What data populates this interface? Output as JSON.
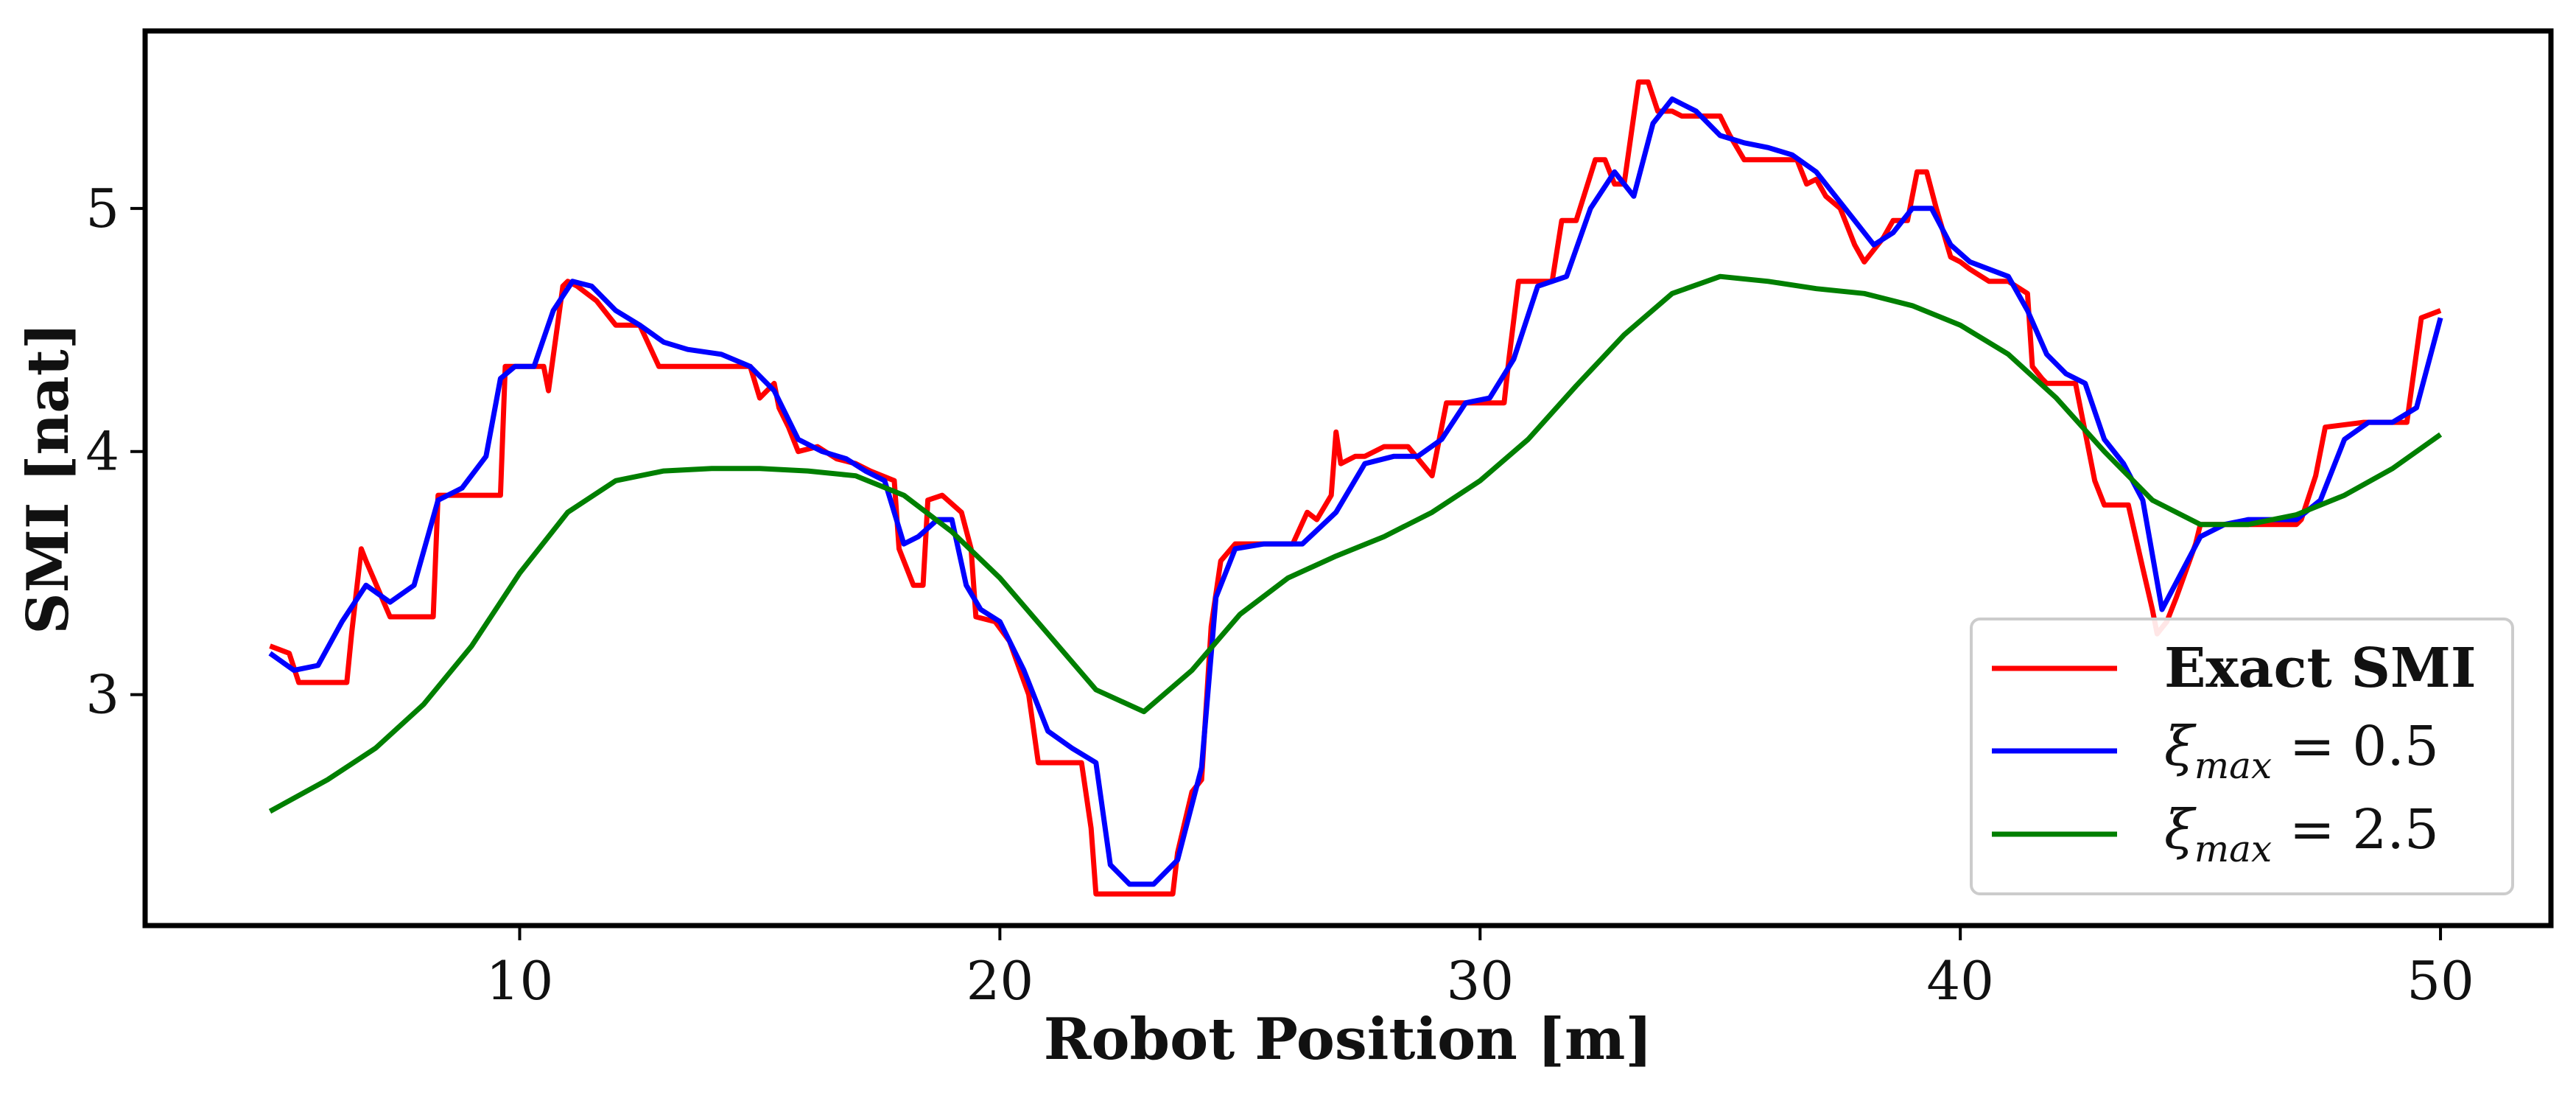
{
  "chart_data": {
    "type": "line",
    "xlabel": "Robot Position [m]",
    "ylabel": "SMI [nat]",
    "xlim": [
      2.2,
      52.3
    ],
    "ylim": [
      2.05,
      5.73
    ],
    "xticks": [
      10,
      20,
      30,
      40,
      50
    ],
    "yticks": [
      3,
      4,
      5
    ],
    "grid": false,
    "legend_position": "bottom-right",
    "series": [
      {
        "name": "Exact SMI",
        "legend_main": "Exact SMI",
        "legend_sub": "",
        "legend_rest": "",
        "color": "#ff0000",
        "x": [
          4.8,
          5.2,
          5.4,
          6.4,
          6.5,
          6.7,
          6.8,
          7.3,
          8.2,
          8.3,
          9.6,
          9.7,
          10.5,
          10.6,
          10.9,
          11.0,
          11.2,
          11.6,
          12.0,
          12.5,
          12.9,
          13.0,
          14.8,
          15.0,
          15.3,
          15.4,
          15.6,
          15.8,
          16.2,
          16.6,
          17.0,
          17.3,
          17.8,
          17.9,
          18.2,
          18.4,
          18.5,
          18.8,
          19.2,
          19.4,
          19.5,
          19.9,
          20.2,
          20.6,
          20.8,
          21.3,
          21.7,
          21.9,
          22.0,
          22.3,
          22.6,
          23.6,
          23.7,
          24.0,
          24.2,
          24.4,
          24.6,
          24.9,
          26.1,
          26.4,
          26.6,
          26.9,
          27.0,
          27.1,
          27.4,
          27.6,
          28.0,
          28.5,
          29.0,
          29.1,
          29.3,
          29.5,
          30.5,
          30.6,
          30.8,
          31.5,
          31.7,
          31.9,
          32.0,
          32.4,
          32.6,
          32.8,
          33.0,
          33.3,
          33.5,
          33.7,
          34.0,
          34.2,
          35.0,
          35.2,
          35.5,
          36.1,
          36.3,
          36.6,
          36.8,
          37.0,
          37.2,
          37.5,
          37.8,
          38.0,
          38.4,
          38.6,
          38.9,
          39.1,
          39.3,
          39.5,
          39.8,
          40.0,
          40.2,
          40.6,
          41.0,
          41.4,
          41.5,
          41.7,
          41.8,
          42.4,
          42.6,
          42.8,
          43.0,
          43.5,
          43.8,
          44.0,
          44.1,
          44.3,
          44.5,
          44.9,
          45.0,
          45.4,
          47.0,
          47.1,
          47.4,
          47.6,
          48.4,
          48.6,
          49.3,
          49.6,
          50.0
        ],
        "y": [
          3.2,
          3.17,
          3.05,
          3.05,
          3.25,
          3.6,
          3.55,
          3.32,
          3.32,
          3.82,
          3.82,
          4.35,
          4.35,
          4.25,
          4.68,
          4.7,
          4.68,
          4.62,
          4.52,
          4.52,
          4.35,
          4.35,
          4.35,
          4.22,
          4.28,
          4.18,
          4.1,
          4.0,
          4.02,
          3.97,
          3.95,
          3.92,
          3.88,
          3.6,
          3.45,
          3.45,
          3.8,
          3.82,
          3.75,
          3.6,
          3.32,
          3.3,
          3.22,
          3.0,
          2.72,
          2.72,
          2.72,
          2.45,
          2.18,
          2.18,
          2.18,
          2.18,
          2.35,
          2.6,
          2.65,
          3.28,
          3.55,
          3.62,
          3.62,
          3.75,
          3.72,
          3.82,
          4.08,
          3.95,
          3.98,
          3.98,
          4.02,
          4.02,
          3.9,
          4.0,
          4.2,
          4.2,
          4.2,
          4.38,
          4.7,
          4.7,
          4.95,
          4.95,
          4.95,
          5.2,
          5.2,
          5.1,
          5.1,
          5.52,
          5.52,
          5.4,
          5.4,
          5.38,
          5.38,
          5.3,
          5.2,
          5.2,
          5.2,
          5.2,
          5.1,
          5.12,
          5.05,
          5.0,
          4.85,
          4.78,
          4.88,
          4.95,
          4.95,
          5.15,
          5.15,
          5.0,
          4.8,
          4.78,
          4.75,
          4.7,
          4.7,
          4.65,
          4.35,
          4.3,
          4.28,
          4.28,
          4.08,
          3.88,
          3.78,
          3.78,
          3.52,
          3.35,
          3.25,
          3.3,
          3.4,
          3.62,
          3.7,
          3.7,
          3.7,
          3.72,
          3.9,
          4.1,
          4.12,
          4.12,
          4.12,
          4.55,
          4.58
        ]
      },
      {
        "name": "ξmax = 0.5",
        "legend_main": "ξ",
        "legend_sub": "max",
        "legend_rest": " = 0.5",
        "color": "#0000ff",
        "x": [
          4.8,
          5.3,
          5.8,
          6.3,
          6.8,
          7.3,
          7.8,
          8.3,
          8.8,
          9.3,
          9.6,
          9.9,
          10.3,
          10.7,
          11.1,
          11.5,
          12.0,
          12.5,
          13.0,
          13.5,
          14.2,
          14.8,
          15.3,
          15.8,
          16.3,
          16.8,
          17.2,
          17.6,
          18.0,
          18.3,
          18.7,
          19.0,
          19.3,
          19.6,
          20.0,
          20.5,
          21.0,
          21.5,
          22.0,
          22.3,
          22.7,
          23.2,
          23.7,
          24.2,
          24.5,
          24.9,
          25.5,
          26.3,
          27.0,
          27.6,
          28.2,
          28.7,
          29.2,
          29.7,
          30.2,
          30.7,
          31.2,
          31.8,
          32.3,
          32.8,
          33.2,
          33.6,
          34.0,
          34.5,
          35.0,
          35.5,
          36.0,
          36.5,
          37.0,
          37.4,
          37.8,
          38.2,
          38.6,
          39.0,
          39.4,
          39.8,
          40.2,
          40.6,
          41.0,
          41.4,
          41.8,
          42.2,
          42.6,
          43.0,
          43.4,
          43.8,
          44.2,
          44.6,
          45.0,
          45.5,
          46.0,
          46.5,
          47.0,
          47.5,
          48.0,
          48.5,
          49.0,
          49.5,
          50.0
        ],
        "y": [
          3.17,
          3.1,
          3.12,
          3.3,
          3.45,
          3.38,
          3.45,
          3.8,
          3.85,
          3.98,
          4.3,
          4.35,
          4.35,
          4.58,
          4.7,
          4.68,
          4.58,
          4.52,
          4.45,
          4.42,
          4.4,
          4.35,
          4.25,
          4.05,
          4.0,
          3.97,
          3.92,
          3.88,
          3.62,
          3.65,
          3.72,
          3.72,
          3.45,
          3.35,
          3.3,
          3.1,
          2.85,
          2.78,
          2.72,
          2.3,
          2.22,
          2.22,
          2.32,
          2.7,
          3.4,
          3.6,
          3.62,
          3.62,
          3.75,
          3.95,
          3.98,
          3.98,
          4.05,
          4.2,
          4.22,
          4.38,
          4.68,
          4.72,
          5.0,
          5.15,
          5.05,
          5.35,
          5.45,
          5.4,
          5.3,
          5.27,
          5.25,
          5.22,
          5.15,
          5.05,
          4.95,
          4.85,
          4.9,
          5.0,
          5.0,
          4.85,
          4.78,
          4.75,
          4.72,
          4.58,
          4.4,
          4.32,
          4.28,
          4.05,
          3.95,
          3.8,
          3.35,
          3.5,
          3.65,
          3.7,
          3.72,
          3.72,
          3.72,
          3.8,
          4.05,
          4.12,
          4.12,
          4.18,
          4.55
        ]
      },
      {
        "name": "ξmax = 2.5",
        "legend_main": "ξ",
        "legend_sub": "max",
        "legend_rest": " = 2.5",
        "color": "#007f00",
        "x": [
          4.8,
          6.0,
          7.0,
          8.0,
          9.0,
          10.0,
          11.0,
          12.0,
          13.0,
          14.0,
          15.0,
          16.0,
          17.0,
          18.0,
          19.0,
          20.0,
          21.0,
          22.0,
          23.0,
          24.0,
          25.0,
          26.0,
          27.0,
          28.0,
          29.0,
          30.0,
          31.0,
          32.0,
          33.0,
          34.0,
          35.0,
          36.0,
          37.0,
          38.0,
          39.0,
          40.0,
          41.0,
          42.0,
          43.0,
          44.0,
          45.0,
          46.0,
          47.0,
          48.0,
          49.0,
          50.0
        ],
        "y": [
          2.52,
          2.65,
          2.78,
          2.96,
          3.2,
          3.5,
          3.75,
          3.88,
          3.92,
          3.93,
          3.93,
          3.92,
          3.9,
          3.82,
          3.67,
          3.48,
          3.25,
          3.02,
          2.93,
          3.1,
          3.33,
          3.48,
          3.57,
          3.65,
          3.75,
          3.88,
          4.05,
          4.27,
          4.48,
          4.65,
          4.72,
          4.7,
          4.67,
          4.65,
          4.6,
          4.52,
          4.4,
          4.22,
          4.0,
          3.8,
          3.7,
          3.7,
          3.74,
          3.82,
          3.93,
          4.07
        ]
      }
    ]
  }
}
